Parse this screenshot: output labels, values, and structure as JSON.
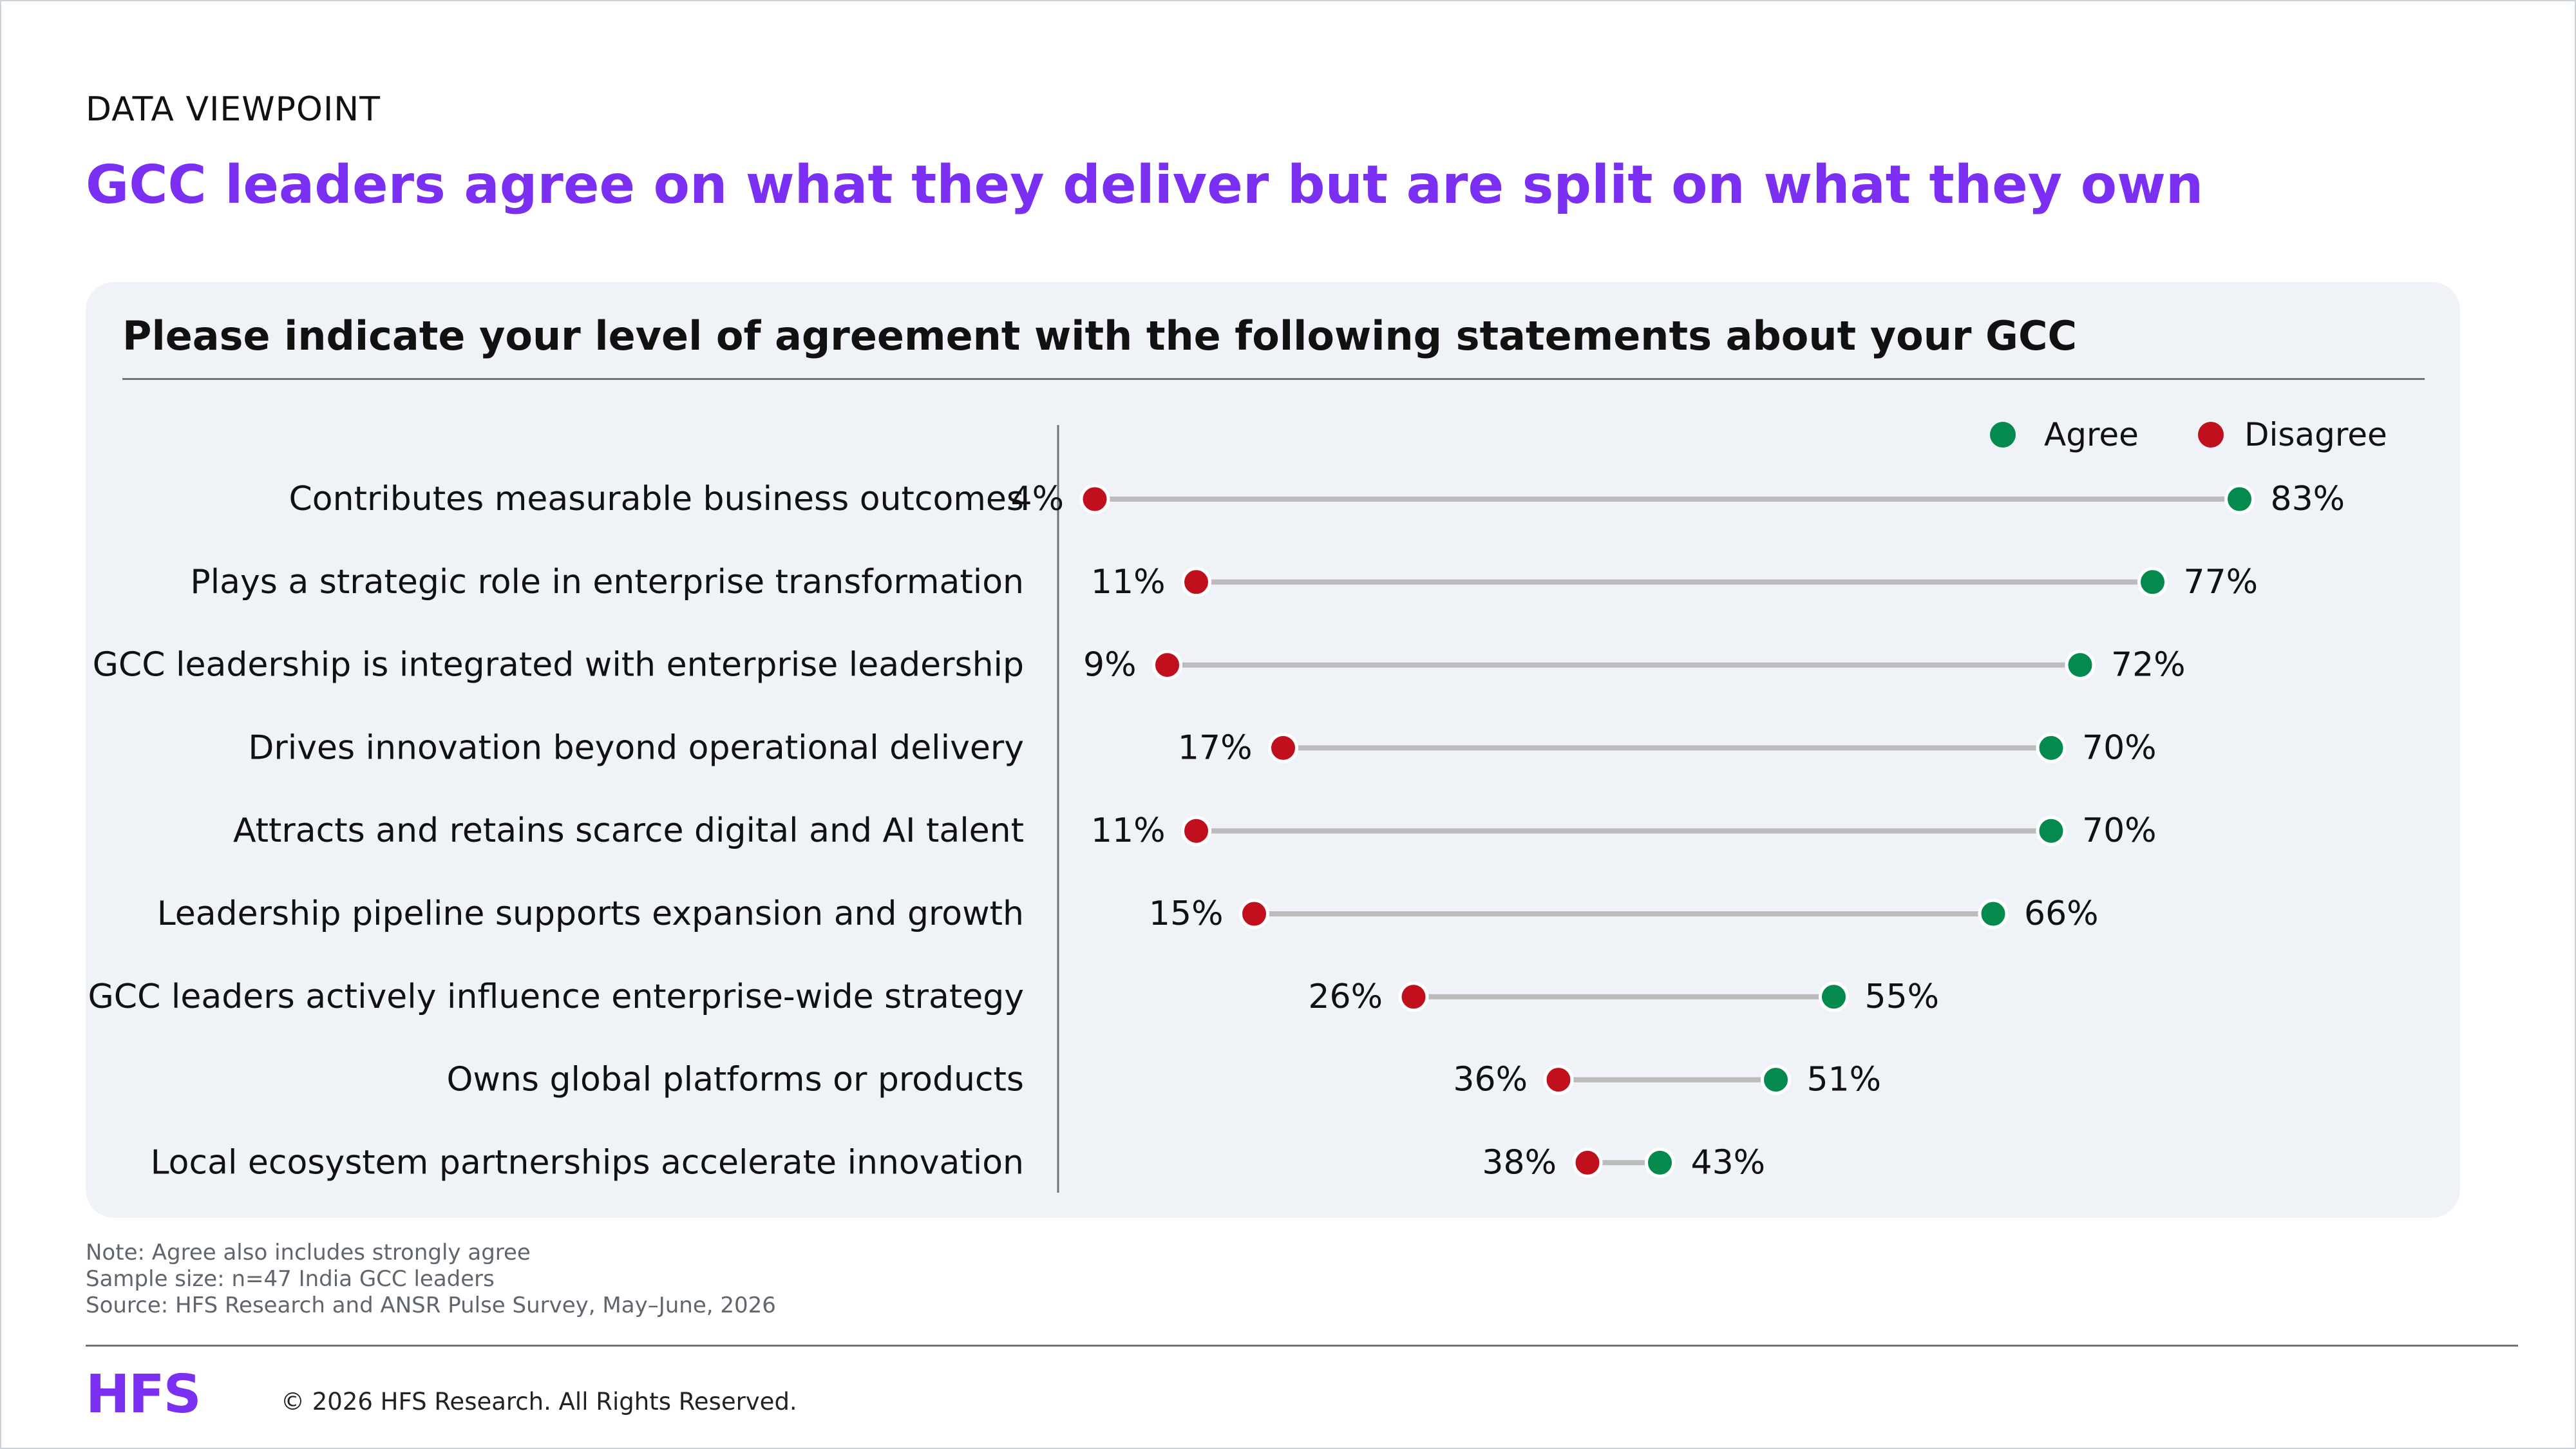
{
  "header": {
    "eyebrow": "DATA VIEWPOINT",
    "headline": "GCC leaders agree on what they deliver but are split on what they own"
  },
  "colors": {
    "agree": "#038a4c",
    "disagree": "#c0101e",
    "connector": "#bcbcbc",
    "accent": "#7a2ff2"
  },
  "chart_data": {
    "type": "dumbbell",
    "title": "Please indicate your level of agreement with the following statements about your GCC",
    "legend": {
      "position": "top-right",
      "agree": "Agree",
      "disagree": "Disagree"
    },
    "xlim": [
      0,
      100
    ],
    "categories": [
      "Contributes measurable business outcomes",
      "Plays a strategic role in enterprise transformation",
      "GCC leadership is integrated with enterprise leadership",
      "Drives innovation beyond operational delivery",
      "Attracts and retains scarce digital and AI talent",
      "Leadership pipeline supports expansion and growth",
      "GCC leaders actively influence enterprise-wide strategy",
      "Owns global platforms or products",
      "Local ecosystem partnerships accelerate innovation"
    ],
    "series": [
      {
        "name": "Agree",
        "values": [
          83,
          77,
          72,
          70,
          70,
          66,
          55,
          51,
          43
        ]
      },
      {
        "name": "Disagree",
        "values": [
          4,
          11,
          9,
          17,
          11,
          15,
          26,
          36,
          38
        ]
      }
    ],
    "value_labels": {
      "agree": [
        "83%",
        "77%",
        "72%",
        "70%",
        "70%",
        "66%",
        "55%",
        "51%",
        "43%"
      ],
      "disagree": [
        "4%",
        "11%",
        "9%",
        "17%",
        "11%",
        "15%",
        "26%",
        "36%",
        "38%"
      ]
    }
  },
  "notes": {
    "line1": "Note: Agree also includes strongly agree",
    "line2": "Sample size: n=47 India GCC leaders",
    "line3": "Source: HFS Research and ANSR Pulse Survey, May–June, 2026"
  },
  "footer": {
    "logo": "HFS",
    "copyright": "© 2026 HFS Research. All Rights Reserved."
  }
}
